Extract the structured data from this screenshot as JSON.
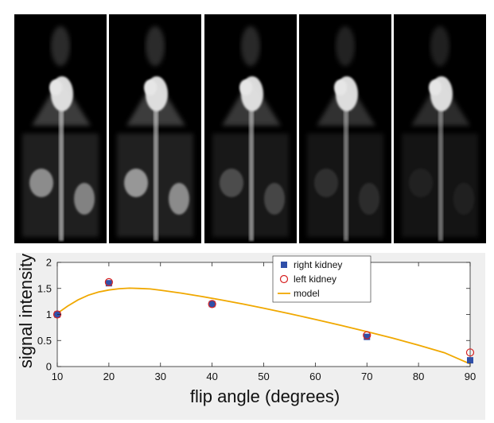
{
  "figure": {
    "panel_count": 5,
    "panels": [
      {
        "id": "panel-1",
        "kidney_brightness": 0.55,
        "vessel_brightness": 0.75
      },
      {
        "id": "panel-2",
        "kidney_brightness": 0.6,
        "vessel_brightness": 0.75
      },
      {
        "id": "panel-3",
        "kidney_brightness": 0.25,
        "vessel_brightness": 0.7
      },
      {
        "id": "panel-4",
        "kidney_brightness": 0.12,
        "vessel_brightness": 0.6
      },
      {
        "id": "panel-5",
        "kidney_brightness": 0.06,
        "vessel_brightness": 0.55
      }
    ]
  },
  "chart_data": {
    "type": "scatter",
    "xlabel": "flip angle (degrees)",
    "ylabel": "signal intensity",
    "xlim": [
      10,
      90
    ],
    "ylim": [
      0,
      2
    ],
    "xticks": [
      10,
      20,
      30,
      40,
      50,
      60,
      70,
      80,
      90
    ],
    "yticks": [
      0,
      0.5,
      1,
      1.5,
      2
    ],
    "ytick_labels": [
      "0",
      "0.5",
      "1",
      "1.5",
      "2"
    ],
    "grid": false,
    "legend_placement": "top-center",
    "series": [
      {
        "name": "right kidney",
        "marker": "filled-square",
        "color": "#2f4fa8",
        "x": [
          10,
          20,
          40,
          70,
          90
        ],
        "y": [
          1.0,
          1.6,
          1.2,
          0.57,
          0.12
        ]
      },
      {
        "name": "left kidney",
        "marker": "open-circle",
        "color": "#d62020",
        "x": [
          10,
          20,
          40,
          70,
          90
        ],
        "y": [
          1.0,
          1.62,
          1.2,
          0.6,
          0.27
        ]
      },
      {
        "name": "model",
        "marker": "line",
        "color": "#f0a800",
        "x": [
          10,
          12,
          14,
          16,
          18,
          20,
          22,
          24,
          26,
          28,
          30,
          34,
          38,
          42,
          46,
          50,
          55,
          60,
          65,
          70,
          75,
          80,
          85,
          90
        ],
        "y": [
          1.02,
          1.16,
          1.28,
          1.37,
          1.43,
          1.47,
          1.495,
          1.505,
          1.5,
          1.49,
          1.465,
          1.41,
          1.345,
          1.275,
          1.2,
          1.12,
          1.015,
          0.905,
          0.79,
          0.67,
          0.545,
          0.41,
          0.265,
          0.05
        ]
      }
    ]
  }
}
